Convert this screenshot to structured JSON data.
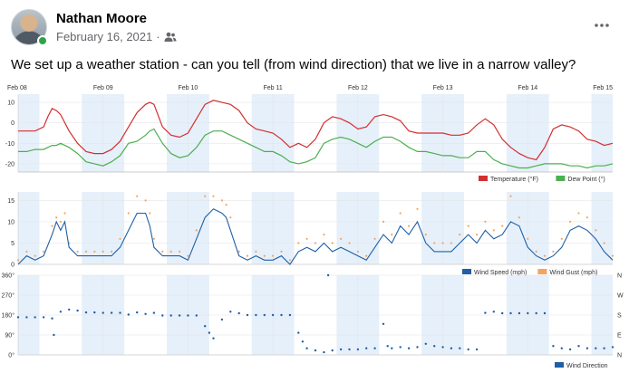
{
  "post": {
    "author": "Nathan Moore",
    "date": "February 16, 2021",
    "separator": "·",
    "audience_icon": "friends-icon",
    "more_icon": "more-horizontal-icon",
    "text": "We set up a weather station - can you tell (from wind direction) that we live in a narrow valley?"
  },
  "colors": {
    "temperature": "#d32f2f",
    "dew_point": "#4caf50",
    "wind_speed": "#1f5fa8",
    "wind_gust": "#f4a460",
    "wind_direction": "#1f5fa8",
    "night_band": "#e6f0fa",
    "grid": "#e2e2e2"
  },
  "chart_data": [
    {
      "type": "line",
      "x_ticks": [
        "Feb 08",
        "Feb 09",
        "Feb 10",
        "Feb 11",
        "Feb 12",
        "Feb 13",
        "Feb 14",
        "Feb 15"
      ],
      "y_ticks": [
        "10",
        "0",
        "-10",
        "-20"
      ],
      "ylim": [
        -24,
        14
      ],
      "x": [
        0,
        0.1,
        0.2,
        0.3,
        0.35,
        0.4,
        0.45,
        0.5,
        0.6,
        0.7,
        0.8,
        0.9,
        1.0,
        1.1,
        1.2,
        1.3,
        1.4,
        1.5,
        1.55,
        1.6,
        1.7,
        1.8,
        1.9,
        2.0,
        2.1,
        2.2,
        2.3,
        2.4,
        2.5,
        2.6,
        2.7,
        2.8,
        2.9,
        3.0,
        3.1,
        3.2,
        3.3,
        3.4,
        3.5,
        3.6,
        3.7,
        3.8,
        3.9,
        4.0,
        4.1,
        4.2,
        4.3,
        4.4,
        4.5,
        4.6,
        4.7,
        4.8,
        4.9,
        5.0,
        5.1,
        5.2,
        5.3,
        5.4,
        5.5,
        5.6,
        5.7,
        5.8,
        5.9,
        6.0,
        6.1,
        6.2,
        6.3,
        6.4,
        6.5,
        6.6,
        6.7,
        6.8,
        6.9,
        7.0
      ],
      "series": [
        {
          "name": "Temperature (°F)",
          "values": [
            -4,
            -4,
            -4,
            -2,
            3,
            7,
            6,
            4,
            -4,
            -10,
            -14,
            -15,
            -15,
            -13,
            -9,
            -2,
            5,
            9,
            10,
            9,
            -2,
            -6,
            -7,
            -5,
            2,
            9,
            11,
            10,
            9,
            6,
            0,
            -3,
            -4,
            -5,
            -8,
            -12,
            -10,
            -12,
            -8,
            0,
            3,
            2,
            0,
            -3,
            -2,
            3,
            4,
            3,
            1,
            -4,
            -5,
            -5,
            -5,
            -5,
            -6,
            -6,
            -5,
            -1,
            2,
            -1,
            -8,
            -12,
            -15,
            -17,
            -18,
            -12,
            -3,
            -1,
            -2,
            -4,
            -8,
            -9,
            -11,
            -10
          ]
        },
        {
          "name": "Dew Point (°)",
          "values": [
            -14,
            -14,
            -13,
            -13,
            -12,
            -11,
            -11,
            -10,
            -12,
            -15,
            -19,
            -20,
            -21,
            -19,
            -16,
            -10,
            -9,
            -6,
            -4,
            -3,
            -10,
            -15,
            -17,
            -16,
            -12,
            -6,
            -4,
            -4,
            -6,
            -8,
            -10,
            -12,
            -14,
            -14,
            -16,
            -19,
            -20,
            -19,
            -17,
            -10,
            -8,
            -7,
            -8,
            -10,
            -12,
            -9,
            -7,
            -7,
            -9,
            -12,
            -14,
            -14,
            -15,
            -16,
            -16,
            -17,
            -17,
            -14,
            -14,
            -18,
            -20,
            -21,
            -22,
            -22,
            -21,
            -20,
            -20,
            -20,
            -21,
            -21,
            -22,
            -21,
            -21,
            -20
          ]
        }
      ],
      "legend": [
        "Temperature (°F)",
        "Dew Point (°)"
      ],
      "legend_position": "bottom-right"
    },
    {
      "type": "line",
      "y_ticks": [
        "15",
        "10",
        "5",
        "0"
      ],
      "ylim": [
        0,
        17
      ],
      "x": [
        0,
        0.1,
        0.2,
        0.3,
        0.4,
        0.45,
        0.5,
        0.55,
        0.6,
        0.7,
        0.8,
        0.9,
        1.0,
        1.1,
        1.2,
        1.3,
        1.4,
        1.5,
        1.55,
        1.6,
        1.7,
        1.8,
        1.9,
        2.0,
        2.1,
        2.2,
        2.3,
        2.4,
        2.45,
        2.5,
        2.6,
        2.7,
        2.8,
        2.9,
        3.0,
        3.1,
        3.2,
        3.3,
        3.4,
        3.5,
        3.6,
        3.7,
        3.8,
        3.9,
        4.0,
        4.1,
        4.2,
        4.3,
        4.4,
        4.5,
        4.6,
        4.7,
        4.8,
        4.9,
        5.0,
        5.1,
        5.2,
        5.3,
        5.4,
        5.5,
        5.6,
        5.7,
        5.8,
        5.9,
        6.0,
        6.1,
        6.2,
        6.3,
        6.4,
        6.5,
        6.6,
        6.7,
        6.8,
        6.9,
        7.0
      ],
      "series": [
        {
          "name": "Wind Speed (mph)",
          "values": [
            0,
            2,
            1,
            2,
            7,
            10,
            8,
            10,
            4,
            2,
            2,
            2,
            2,
            2,
            4,
            8,
            12,
            12,
            9,
            4,
            2,
            2,
            2,
            1,
            6,
            11,
            13,
            12,
            11,
            8,
            2,
            1,
            2,
            1,
            1,
            2,
            0,
            3,
            4,
            3,
            5,
            3,
            4,
            3,
            2,
            1,
            4,
            7,
            5,
            9,
            7,
            10,
            5,
            3,
            3,
            3,
            5,
            7,
            5,
            8,
            6,
            7,
            10,
            9,
            4,
            2,
            1,
            2,
            4,
            8,
            9,
            8,
            6,
            3,
            1
          ],
          "gusts": [
            1,
            3,
            2,
            3,
            9,
            11,
            10,
            12,
            5,
            3,
            3,
            3,
            3,
            3,
            6,
            12,
            16,
            15,
            12,
            6,
            3,
            3,
            3,
            2,
            8,
            16,
            16,
            15,
            14,
            11,
            3,
            2,
            3,
            2,
            2,
            3,
            1,
            5,
            6,
            5,
            7,
            5,
            6,
            5,
            3,
            2,
            6,
            10,
            7,
            12,
            9,
            13,
            7,
            5,
            5,
            5,
            7,
            9,
            7,
            10,
            8,
            9,
            16,
            11,
            6,
            3,
            2,
            3,
            6,
            10,
            12,
            11,
            8,
            5,
            2
          ]
        }
      ],
      "legend": [
        "Wind Speed (mph)",
        "Wind Gust (mph)"
      ],
      "legend_position": "bottom-right"
    },
    {
      "type": "scatter",
      "y_ticks": [
        "360°",
        "270°",
        "180°",
        "90°",
        "0°"
      ],
      "y_ticks_right": [
        "N",
        "W",
        "S",
        "E",
        "N"
      ],
      "ylim": [
        0,
        360
      ],
      "points": [
        [
          0,
          170
        ],
        [
          0.1,
          170
        ],
        [
          0.2,
          170
        ],
        [
          0.3,
          170
        ],
        [
          0.4,
          165
        ],
        [
          0.42,
          90
        ],
        [
          0.5,
          195
        ],
        [
          0.6,
          205
        ],
        [
          0.7,
          200
        ],
        [
          0.8,
          192
        ],
        [
          0.9,
          192
        ],
        [
          1.0,
          190
        ],
        [
          1.1,
          190
        ],
        [
          1.2,
          190
        ],
        [
          1.3,
          182
        ],
        [
          1.4,
          192
        ],
        [
          1.5,
          185
        ],
        [
          1.6,
          190
        ],
        [
          1.7,
          178
        ],
        [
          1.8,
          178
        ],
        [
          1.9,
          178
        ],
        [
          2.0,
          178
        ],
        [
          2.1,
          178
        ],
        [
          2.2,
          130
        ],
        [
          2.25,
          100
        ],
        [
          2.3,
          75
        ],
        [
          2.4,
          160
        ],
        [
          2.5,
          195
        ],
        [
          2.6,
          188
        ],
        [
          2.7,
          180
        ],
        [
          2.8,
          180
        ],
        [
          2.9,
          180
        ],
        [
          3.0,
          180
        ],
        [
          3.1,
          180
        ],
        [
          3.2,
          180
        ],
        [
          3.3,
          100
        ],
        [
          3.35,
          60
        ],
        [
          3.4,
          30
        ],
        [
          3.5,
          20
        ],
        [
          3.6,
          12
        ],
        [
          3.65,
          360
        ],
        [
          3.7,
          20
        ],
        [
          3.8,
          25
        ],
        [
          3.9,
          25
        ],
        [
          4.0,
          25
        ],
        [
          4.1,
          30
        ],
        [
          4.2,
          30
        ],
        [
          4.3,
          140
        ],
        [
          4.35,
          40
        ],
        [
          4.4,
          30
        ],
        [
          4.5,
          35
        ],
        [
          4.6,
          30
        ],
        [
          4.7,
          35
        ],
        [
          4.8,
          50
        ],
        [
          4.9,
          40
        ],
        [
          5.0,
          35
        ],
        [
          5.1,
          30
        ],
        [
          5.2,
          30
        ],
        [
          5.3,
          25
        ],
        [
          5.4,
          25
        ],
        [
          5.5,
          190
        ],
        [
          5.6,
          195
        ],
        [
          5.7,
          188
        ],
        [
          5.8,
          188
        ],
        [
          5.9,
          188
        ],
        [
          6.0,
          188
        ],
        [
          6.1,
          188
        ],
        [
          6.2,
          188
        ],
        [
          6.3,
          40
        ],
        [
          6.4,
          30
        ],
        [
          6.5,
          25
        ],
        [
          6.6,
          40
        ],
        [
          6.7,
          30
        ],
        [
          6.8,
          30
        ],
        [
          6.9,
          30
        ],
        [
          7.0,
          35
        ]
      ],
      "legend": [
        "Wind Direction"
      ],
      "legend_position": "bottom-right"
    }
  ]
}
